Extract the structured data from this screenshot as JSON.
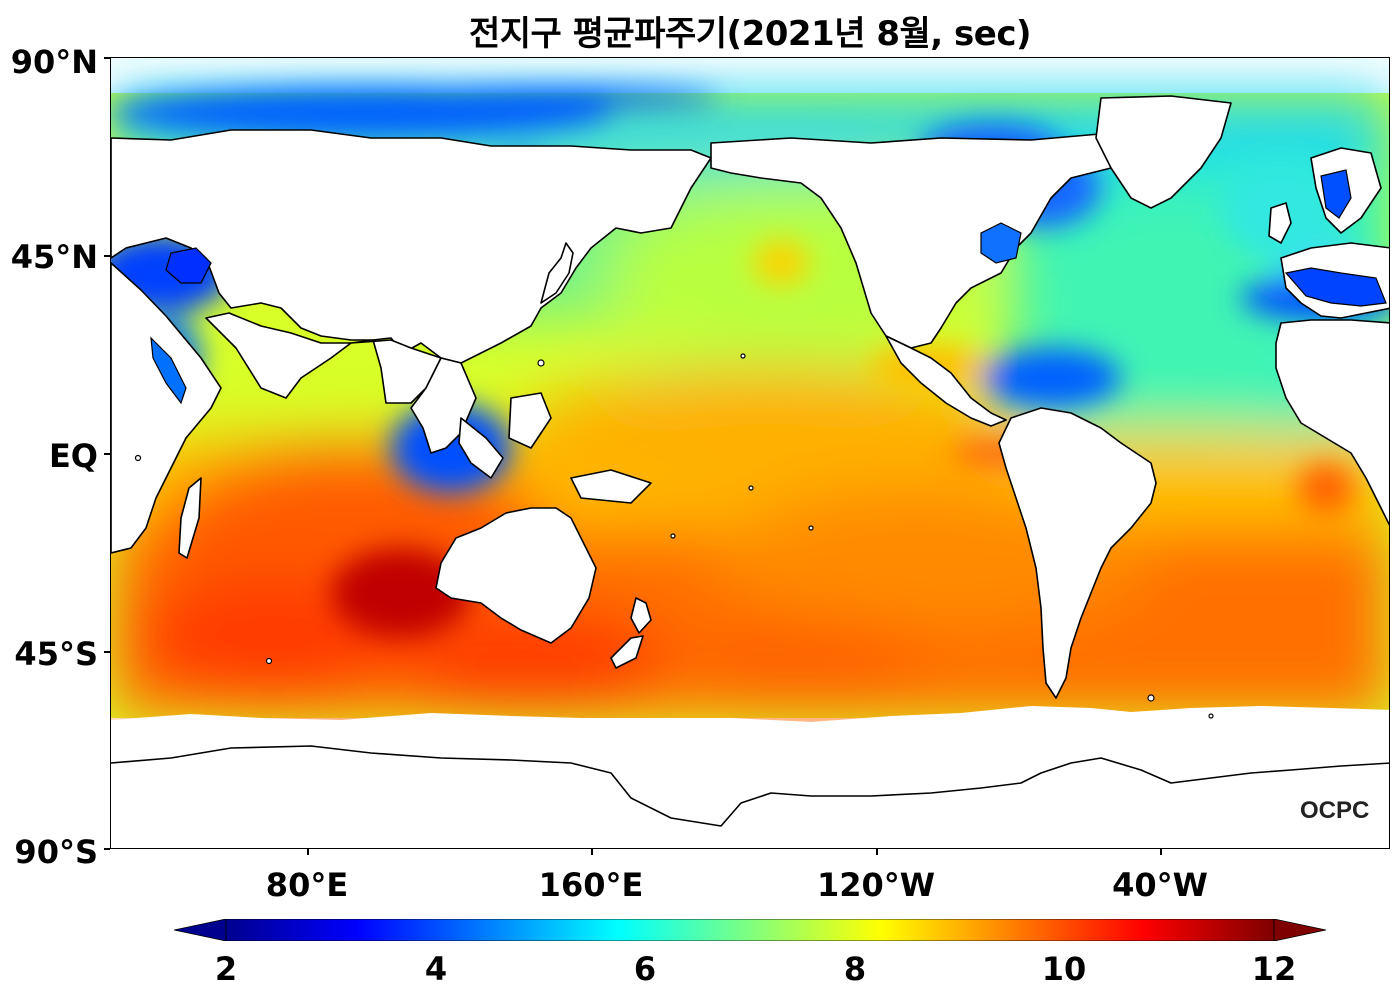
{
  "title": "전지구 평균파주기(2021년 8월, sec)",
  "logo": "OCPC",
  "colormap": "jet",
  "colors": {
    "land": "#ffffff",
    "coastline": "#000000",
    "cmap_low": "#00008f",
    "cmap_mid": "#7fff7f",
    "cmap_high": "#7f0000"
  },
  "axes": {
    "lat_ticks": [
      "90°N",
      "45°N",
      "EQ",
      "45°S",
      "90°S"
    ],
    "lon_ticks": [
      "80°E",
      "160°E",
      "120°W",
      "40°W"
    ]
  },
  "colorbar": {
    "min": 2,
    "max": 12,
    "extend": "both",
    "ticks": [
      "2",
      "4",
      "6",
      "8",
      "10",
      "12"
    ]
  }
}
